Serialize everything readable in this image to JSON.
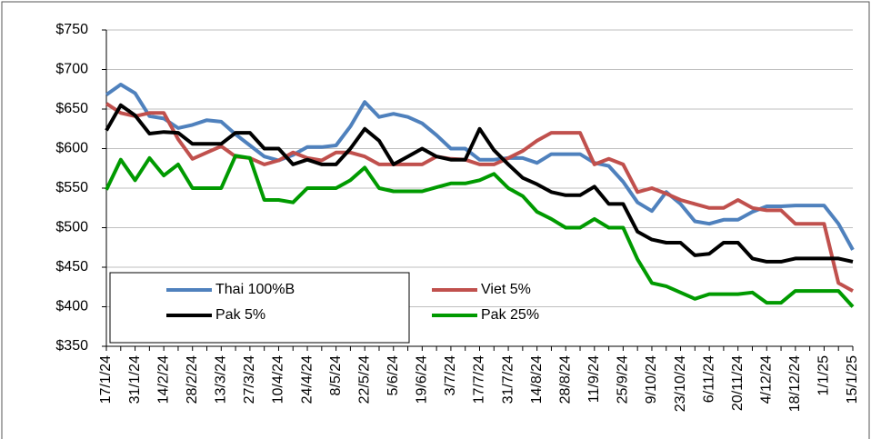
{
  "chart_data": {
    "type": "line",
    "categories": [
      "17/1/24",
      null,
      "31/1/24",
      null,
      "14/2/24",
      null,
      "28/2/24",
      null,
      "13/3/24",
      null,
      "27/3/24",
      null,
      "10/4/24",
      null,
      "24/4/24",
      null,
      "8/5/24",
      null,
      "22/5/24",
      null,
      "5/6/24",
      null,
      "19/6/24",
      null,
      "3/7/24",
      null,
      "17/7/24",
      null,
      "31/7/24",
      null,
      "14/8/24",
      null,
      "28/8/24",
      null,
      "11/9/24",
      null,
      "25/9/24",
      null,
      "9/10/24",
      null,
      "23/10/24",
      null,
      "6/11/24",
      null,
      "20/11/24",
      null,
      "4/12/24",
      null,
      "18/12/24",
      null,
      "1/1/25",
      null,
      "15/1/25"
    ],
    "series": [
      {
        "name": "Thai 100%B",
        "color": "#4f81bd",
        "values": [
          668,
          681,
          670,
          641,
          638,
          626,
          630,
          636,
          634,
          618,
          604,
          590,
          585,
          592,
          602,
          602,
          604,
          628,
          659,
          640,
          644,
          640,
          632,
          617,
          600,
          600,
          586,
          586,
          588,
          588,
          582,
          593,
          593,
          593,
          582,
          578,
          558,
          532,
          521,
          545,
          530,
          508,
          505,
          510,
          510,
          520,
          527,
          527,
          528,
          528,
          528,
          505,
          472
        ]
      },
      {
        "name": "Viet 5%",
        "color": "#c0504d",
        "values": [
          657,
          645,
          641,
          645,
          645,
          612,
          587,
          595,
          603,
          590,
          588,
          580,
          585,
          595,
          588,
          585,
          595,
          595,
          590,
          580,
          580,
          580,
          580,
          590,
          587,
          586,
          580,
          580,
          588,
          597,
          610,
          620,
          620,
          620,
          580,
          587,
          580,
          545,
          550,
          543,
          535,
          530,
          525,
          525,
          535,
          525,
          522,
          522,
          505,
          505,
          505,
          430,
          420
        ]
      },
      {
        "name": "Pak 5%",
        "color": "#000000",
        "values": [
          623,
          655,
          642,
          619,
          621,
          620,
          606,
          606,
          606,
          620,
          620,
          600,
          600,
          580,
          586,
          580,
          580,
          600,
          625,
          610,
          580,
          590,
          600,
          590,
          586,
          586,
          625,
          598,
          580,
          563,
          555,
          545,
          541,
          541,
          552,
          530,
          530,
          495,
          485,
          481,
          481,
          465,
          467,
          481,
          481,
          461,
          457,
          457,
          461,
          461,
          461,
          461,
          457
        ]
      },
      {
        "name": "Pak 25%",
        "color": "#009a00",
        "values": [
          548,
          586,
          560,
          588,
          566,
          580,
          550,
          550,
          550,
          591,
          588,
          535,
          535,
          532,
          550,
          550,
          550,
          560,
          576,
          550,
          546,
          546,
          546,
          551,
          556,
          556,
          560,
          568,
          550,
          540,
          520,
          511,
          500,
          500,
          511,
          500,
          500,
          460,
          430,
          426,
          418,
          410,
          416,
          416,
          416,
          418,
          405,
          405,
          420,
          420,
          420,
          420,
          400
        ]
      }
    ],
    "ylim": [
      350,
      750
    ],
    "yticks": [
      {
        "value": 350,
        "label": "$350"
      },
      {
        "value": 400,
        "label": "$400"
      },
      {
        "value": 450,
        "label": "$450"
      },
      {
        "value": 500,
        "label": "$500"
      },
      {
        "value": 550,
        "label": "$550"
      },
      {
        "value": 600,
        "label": "$600"
      },
      {
        "value": 650,
        "label": "$650"
      },
      {
        "value": 700,
        "label": "$700"
      },
      {
        "value": 750,
        "label": "$750"
      }
    ],
    "grid": true,
    "legend": "lower-left"
  }
}
